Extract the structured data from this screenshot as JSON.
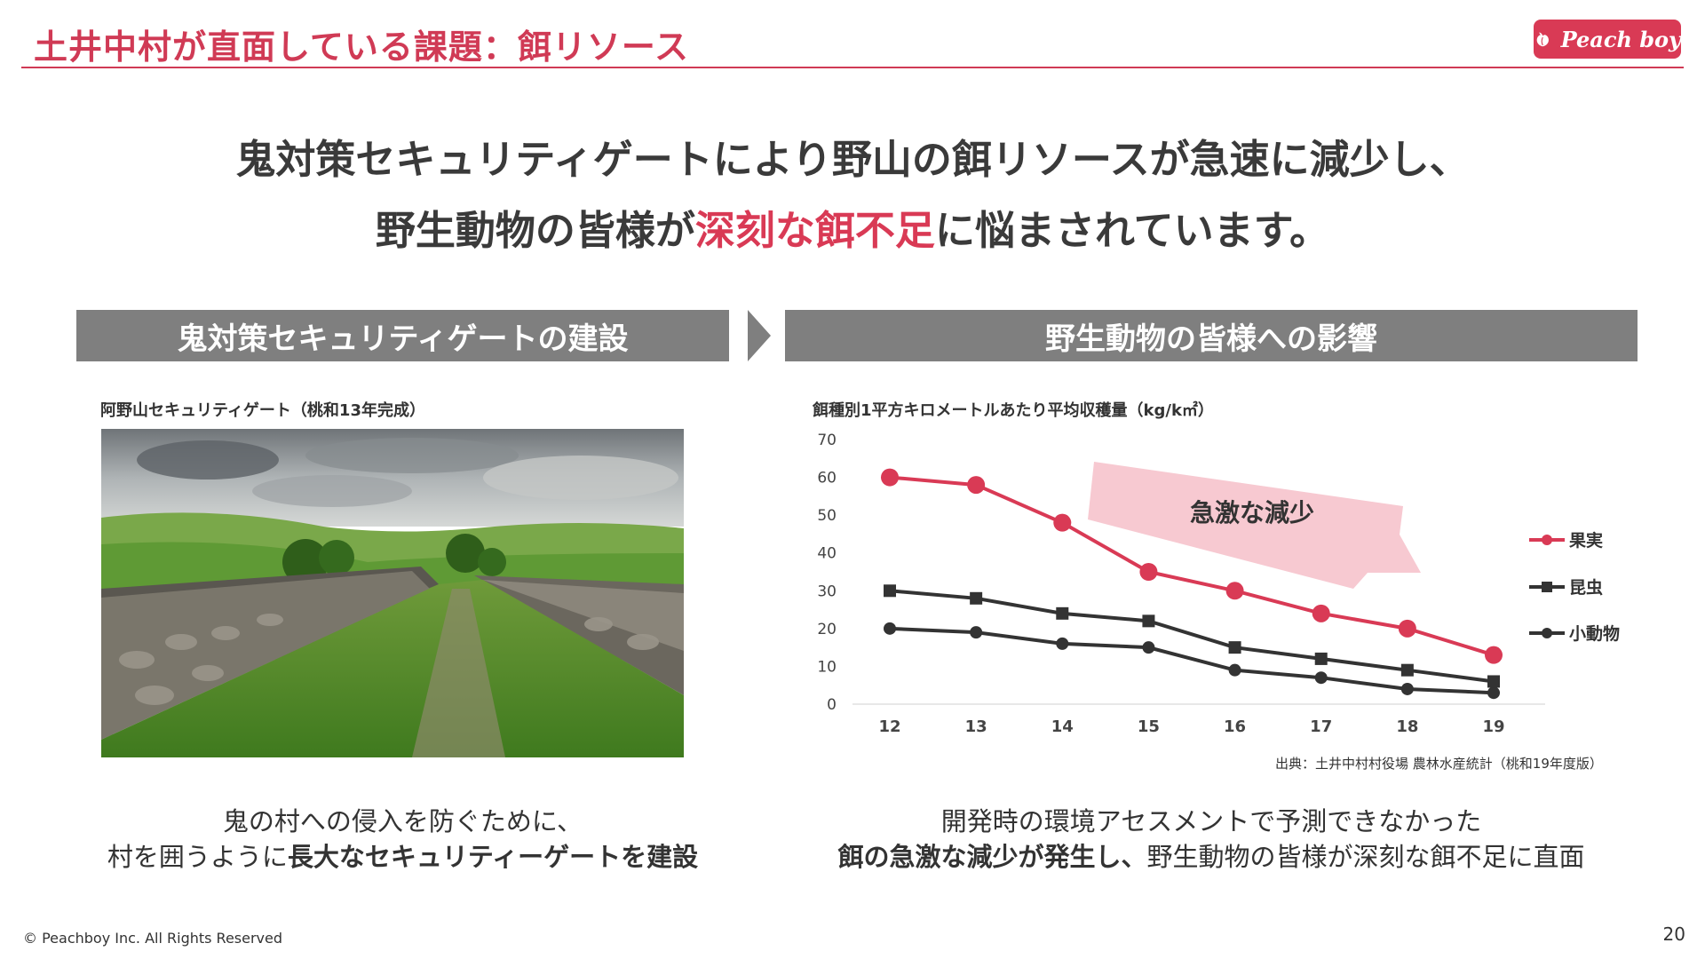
{
  "header": {
    "title": "土井中村が直面している課題：餌リソース",
    "logo_text": "Peach boy",
    "accent_color": "#d93a55"
  },
  "headline": {
    "line1": "鬼対策セキュリティゲートにより野山の餌リソースが急速に減少し、",
    "line2_pre": "野生動物の皆様が",
    "line2_accent": "深刻な餌不足",
    "line2_post": "に悩まされています。"
  },
  "left_panel": {
    "header": "鬼対策セキュリティゲートの建設",
    "photo_caption": "阿野山セキュリティゲート（桃和13年完成）",
    "desc_line1": "鬼の村への侵入を防ぐために、",
    "desc_line2_pre": "村を囲うように",
    "desc_line2_bold": "長大なセキュリティーゲートを建設"
  },
  "right_panel": {
    "header": "野生動物の皆様への影響",
    "chart_caption": "餌種別1平方キロメートルあたり平均収穫量（kg/k㎡）",
    "source": "出典：土井中村村役場 農林水産統計（桃和19年度版）",
    "desc_line1": "開発時の環境アセスメントで予測できなかった",
    "desc_line2_bold": "餌の急激な減少が発生し、",
    "desc_line2_post": "野生動物の皆様が深刻な餌不足に直面"
  },
  "chart_data": {
    "type": "line",
    "title": "餌種別1平方キロメートルあたり平均収穫量（kg/k㎡）",
    "categories": [
      "12",
      "13",
      "14",
      "15",
      "16",
      "17",
      "18",
      "19"
    ],
    "ylim": [
      0,
      70
    ],
    "yticks": [
      "0",
      "10",
      "20",
      "30",
      "40",
      "50",
      "60",
      "70"
    ],
    "grid": false,
    "legend_position": "right",
    "annotation": "急激な減少",
    "series": [
      {
        "name": "果実",
        "values": [
          60,
          58,
          48,
          35,
          30,
          24,
          20,
          13
        ],
        "color": "#d93a55",
        "marker": "circle"
      },
      {
        "name": "昆虫",
        "values": [
          30,
          28,
          24,
          22,
          15,
          12,
          9,
          6
        ],
        "color": "#333333",
        "marker": "square"
      },
      {
        "name": "小動物",
        "values": [
          20,
          19,
          16,
          15,
          9,
          7,
          4,
          3
        ],
        "color": "#333333",
        "marker": "circle"
      }
    ]
  },
  "footer": {
    "copyright": "© Peachboy Inc. All Rights Reserved",
    "page_number": "20"
  }
}
